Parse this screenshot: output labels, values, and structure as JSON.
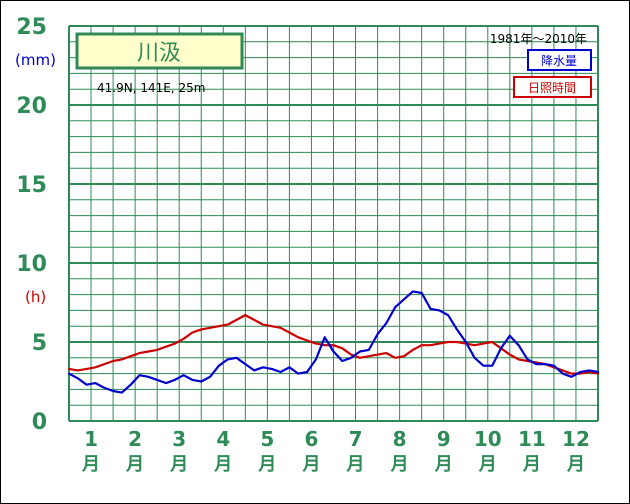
{
  "chart_data": {
    "type": "line",
    "title": "",
    "station_name": "川汲",
    "location": "41.9N,  141E,  25m",
    "period": "1981年〜2010年",
    "y_unit_precip": "(mm)",
    "y_unit_sun": "(h)",
    "ylim": [
      0,
      25
    ],
    "y_ticks": [
      "0",
      "5",
      "10",
      "15",
      "20",
      "25"
    ],
    "x_labels": [
      {
        "num": "1",
        "unit": "月"
      },
      {
        "num": "2",
        "unit": "月"
      },
      {
        "num": "3",
        "unit": "月"
      },
      {
        "num": "4",
        "unit": "月"
      },
      {
        "num": "5",
        "unit": "月"
      },
      {
        "num": "6",
        "unit": "月"
      },
      {
        "num": "7",
        "unit": "月"
      },
      {
        "num": "8",
        "unit": "月"
      },
      {
        "num": "9",
        "unit": "月"
      },
      {
        "num": "10",
        "unit": "月"
      },
      {
        "num": "11",
        "unit": "月"
      },
      {
        "num": "12",
        "unit": "月"
      }
    ],
    "xlim": [
      0.5,
      12.5
    ],
    "grid": true,
    "legend": {
      "precip": "降水量",
      "sun": "日照時間"
    },
    "colors": {
      "precip": "#0000cc",
      "sun": "#cc0000",
      "grid": "#2e8b57",
      "frame": "#2e8b57"
    },
    "series": [
      {
        "name": "降水量",
        "x": [
          0.5,
          0.7,
          0.9,
          1.1,
          1.3,
          1.5,
          1.7,
          1.9,
          2.1,
          2.3,
          2.5,
          2.7,
          2.9,
          3.1,
          3.3,
          3.5,
          3.7,
          3.9,
          4.1,
          4.3,
          4.5,
          4.7,
          4.9,
          5.1,
          5.3,
          5.5,
          5.7,
          5.9,
          6.1,
          6.3,
          6.5,
          6.7,
          6.9,
          7.1,
          7.3,
          7.5,
          7.7,
          7.9,
          8.1,
          8.3,
          8.5,
          8.7,
          8.9,
          9.1,
          9.3,
          9.5,
          9.7,
          9.9,
          10.1,
          10.3,
          10.5,
          10.7,
          10.9,
          11.1,
          11.3,
          11.5,
          11.7,
          11.9,
          12.1,
          12.3,
          12.5
        ],
        "values": [
          3.0,
          2.7,
          2.3,
          2.4,
          2.1,
          1.9,
          1.8,
          2.3,
          2.9,
          2.8,
          2.6,
          2.4,
          2.6,
          2.9,
          2.6,
          2.5,
          2.8,
          3.5,
          3.9,
          4.0,
          3.6,
          3.2,
          3.4,
          3.3,
          3.1,
          3.4,
          3.0,
          3.1,
          3.9,
          5.3,
          4.4,
          3.8,
          4.0,
          4.4,
          4.5,
          5.5,
          6.2,
          7.2,
          7.7,
          8.2,
          8.1,
          7.1,
          7.0,
          6.7,
          5.8,
          5.0,
          4.0,
          3.5,
          3.5,
          4.6,
          5.4,
          4.8,
          3.9,
          3.6,
          3.6,
          3.5,
          3.0,
          2.8,
          3.1,
          3.2,
          3.1
        ]
      },
      {
        "name": "日照時間",
        "x": [
          0.5,
          0.7,
          0.9,
          1.1,
          1.3,
          1.5,
          1.7,
          1.9,
          2.1,
          2.3,
          2.5,
          2.7,
          2.9,
          3.1,
          3.3,
          3.5,
          3.7,
          3.9,
          4.1,
          4.3,
          4.5,
          4.7,
          4.9,
          5.1,
          5.3,
          5.5,
          5.7,
          5.9,
          6.1,
          6.3,
          6.5,
          6.7,
          6.9,
          7.1,
          7.3,
          7.5,
          7.7,
          7.9,
          8.1,
          8.3,
          8.5,
          8.7,
          8.9,
          9.1,
          9.3,
          9.5,
          9.7,
          9.9,
          10.1,
          10.3,
          10.5,
          10.7,
          10.9,
          11.1,
          11.3,
          11.5,
          11.7,
          11.9,
          12.1,
          12.3,
          12.5
        ],
        "values": [
          3.3,
          3.2,
          3.3,
          3.4,
          3.6,
          3.8,
          3.9,
          4.1,
          4.3,
          4.4,
          4.5,
          4.7,
          4.9,
          5.2,
          5.6,
          5.8,
          5.9,
          6.0,
          6.1,
          6.4,
          6.7,
          6.4,
          6.1,
          6.0,
          5.9,
          5.6,
          5.3,
          5.1,
          4.9,
          4.8,
          4.8,
          4.6,
          4.2,
          4.0,
          4.1,
          4.2,
          4.3,
          4.0,
          4.1,
          4.5,
          4.8,
          4.8,
          4.9,
          5.0,
          5.0,
          4.9,
          4.8,
          4.9,
          5.0,
          4.6,
          4.2,
          3.9,
          3.8,
          3.7,
          3.6,
          3.4,
          3.2,
          3.0,
          3.0,
          3.1,
          3.0
        ]
      }
    ]
  }
}
